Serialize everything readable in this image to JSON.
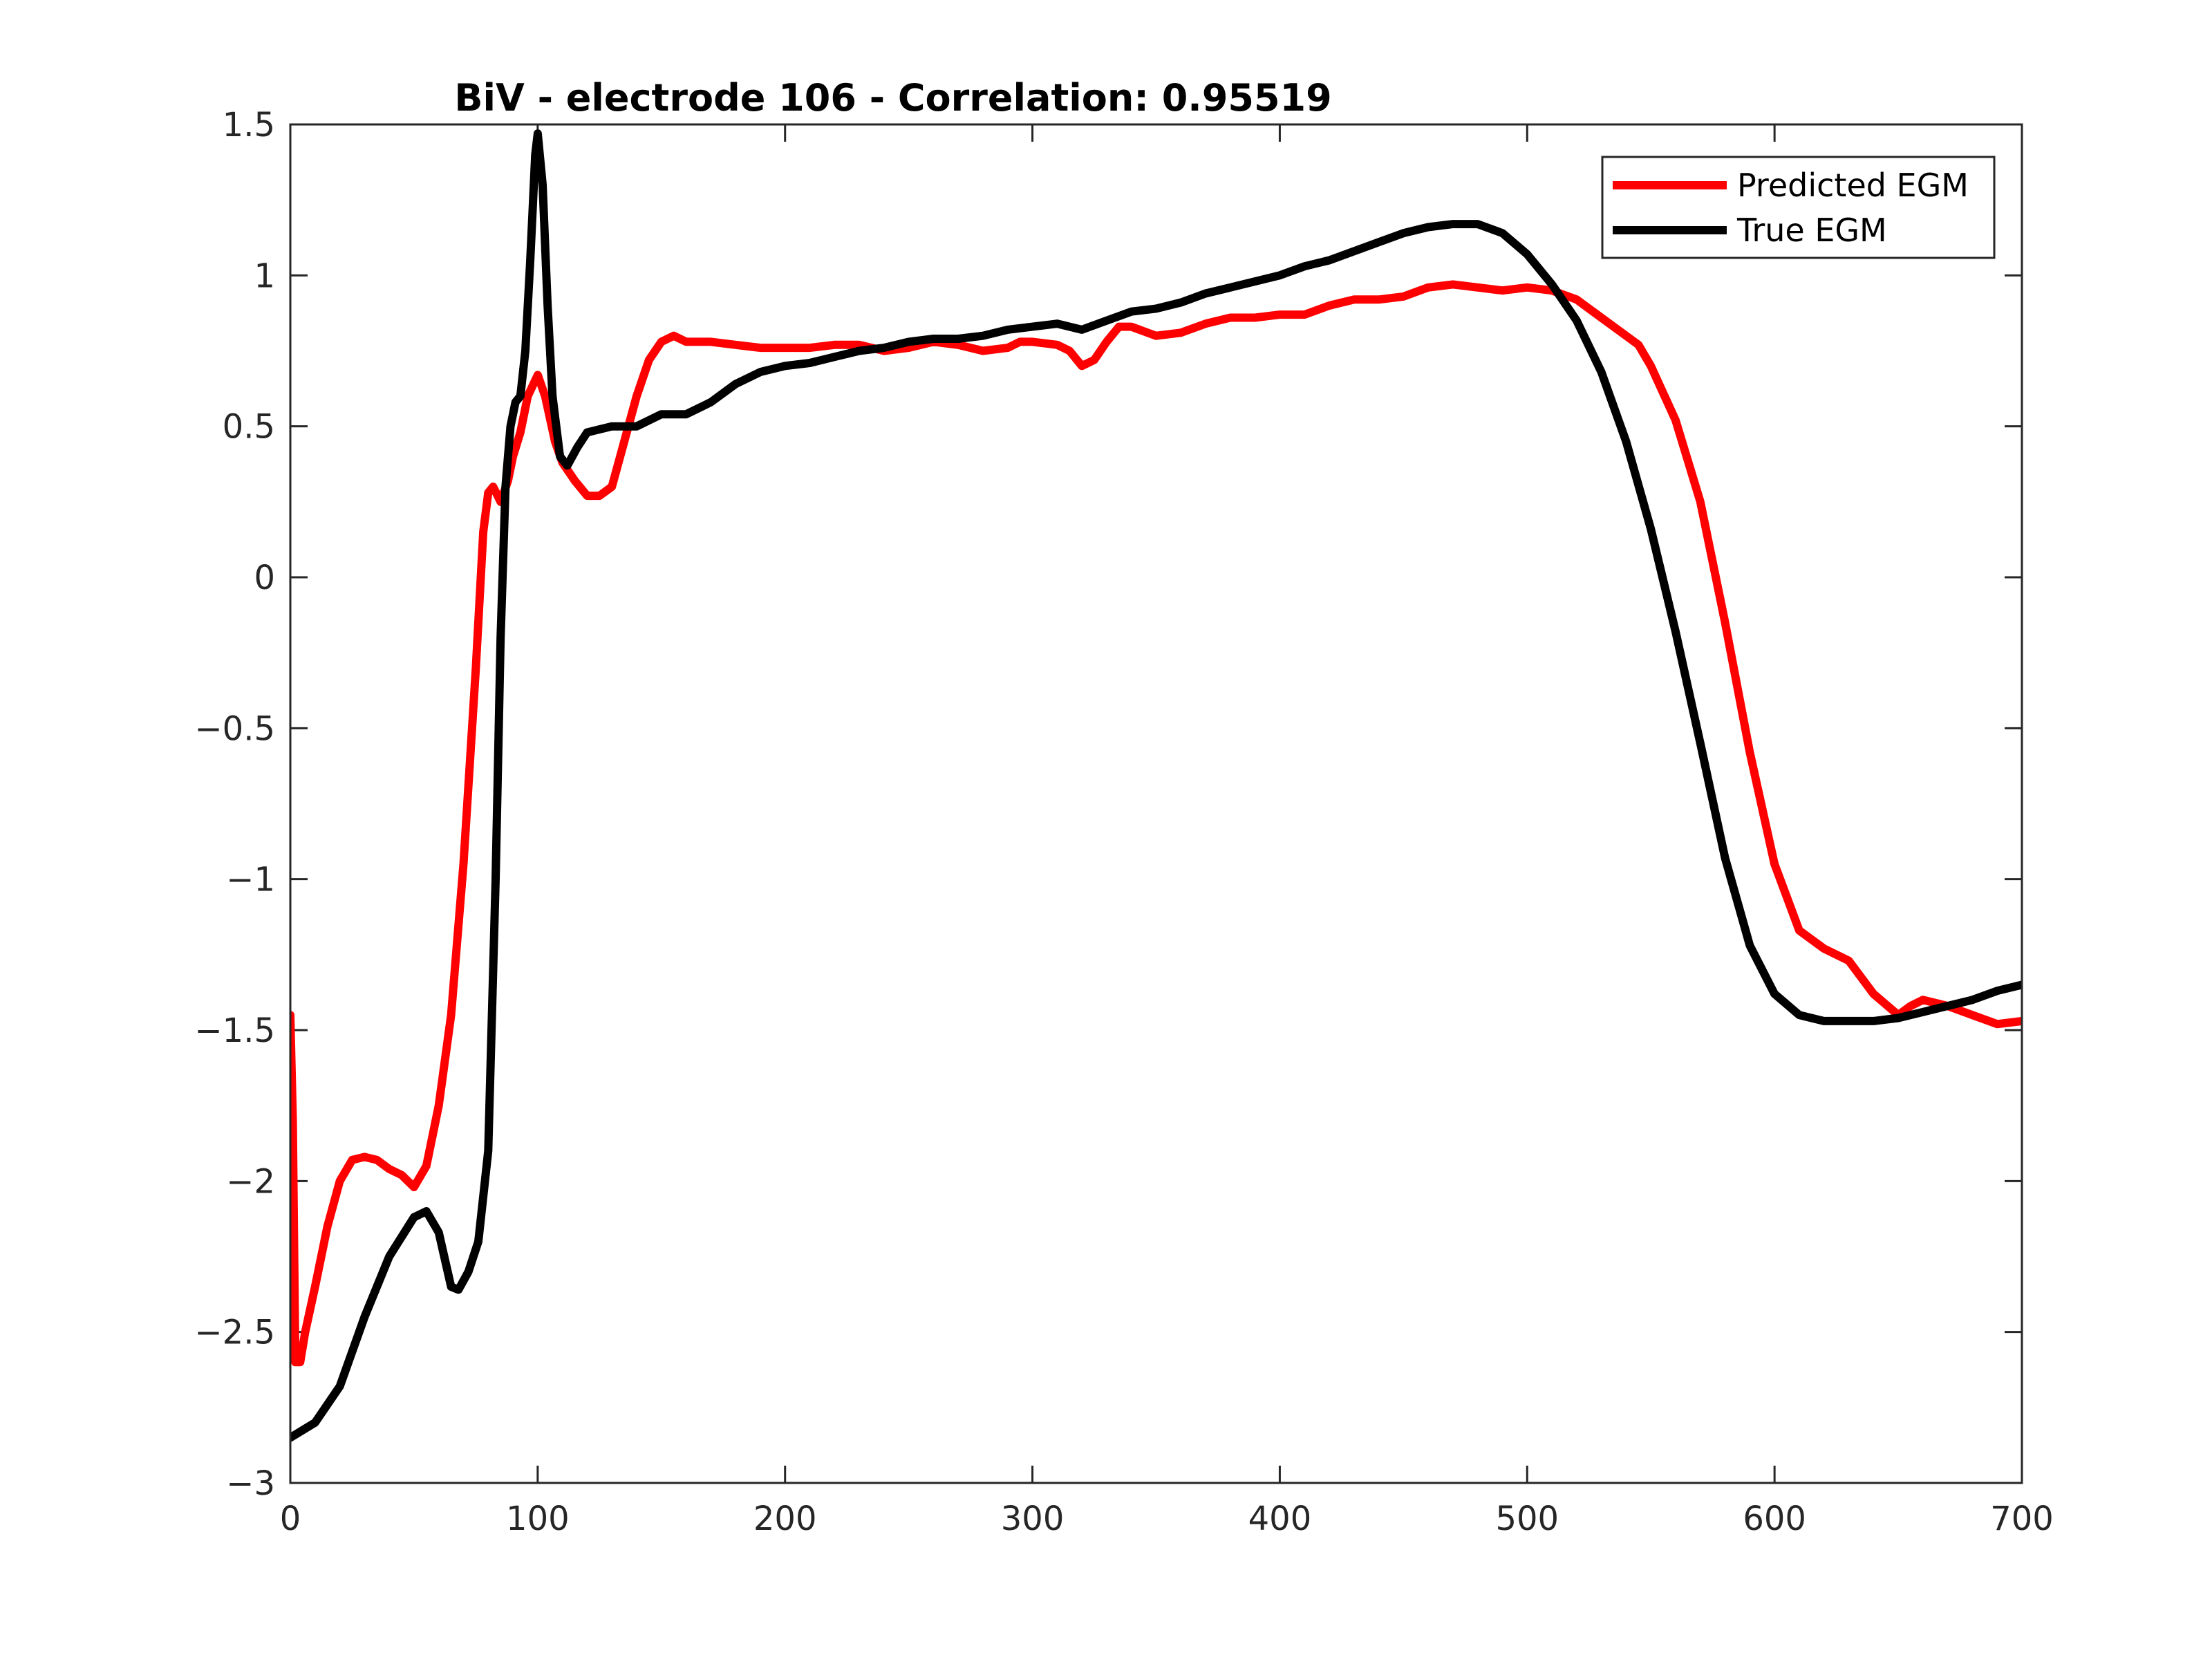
{
  "chart_data": {
    "type": "line",
    "title": "BiV - electrode 106 - Correlation: 0.95519",
    "xlabel": "",
    "ylabel": "",
    "xlim": [
      0,
      700
    ],
    "ylim": [
      -3,
      1.5
    ],
    "xticks": [
      0,
      100,
      200,
      300,
      400,
      500,
      600,
      700
    ],
    "xtick_labels": [
      "0",
      "100",
      "200",
      "300",
      "400",
      "500",
      "600",
      "700"
    ],
    "yticks": [
      1.5,
      1,
      0.5,
      0,
      -0.5,
      -1,
      -1.5,
      -2,
      -2.5,
      -3
    ],
    "ytick_labels": [
      "1.5",
      "1",
      "0.5",
      "0",
      "−0.5",
      "−1",
      "−1.5",
      "−2",
      "−2.5",
      "−3"
    ],
    "grid": false,
    "legend_position": "top-right",
    "series": [
      {
        "name": "Predicted EGM",
        "color": "#ff0000",
        "points": [
          [
            0,
            -1.45
          ],
          [
            1,
            -1.8
          ],
          [
            2,
            -2.6
          ],
          [
            4,
            -2.6
          ],
          [
            6,
            -2.5
          ],
          [
            10,
            -2.35
          ],
          [
            15,
            -2.15
          ],
          [
            20,
            -2.0
          ],
          [
            25,
            -1.93
          ],
          [
            30,
            -1.92
          ],
          [
            35,
            -1.93
          ],
          [
            40,
            -1.96
          ],
          [
            45,
            -1.98
          ],
          [
            50,
            -2.02
          ],
          [
            55,
            -1.95
          ],
          [
            60,
            -1.75
          ],
          [
            65,
            -1.45
          ],
          [
            70,
            -0.95
          ],
          [
            75,
            -0.3
          ],
          [
            78,
            0.15
          ],
          [
            80,
            0.28
          ],
          [
            82,
            0.3
          ],
          [
            85,
            0.25
          ],
          [
            88,
            0.32
          ],
          [
            90,
            0.4
          ],
          [
            93,
            0.48
          ],
          [
            96,
            0.6
          ],
          [
            100,
            0.67
          ],
          [
            103,
            0.6
          ],
          [
            107,
            0.45
          ],
          [
            110,
            0.38
          ],
          [
            115,
            0.32
          ],
          [
            120,
            0.27
          ],
          [
            125,
            0.27
          ],
          [
            130,
            0.3
          ],
          [
            135,
            0.45
          ],
          [
            140,
            0.6
          ],
          [
            145,
            0.72
          ],
          [
            150,
            0.78
          ],
          [
            155,
            0.8
          ],
          [
            160,
            0.78
          ],
          [
            170,
            0.78
          ],
          [
            180,
            0.77
          ],
          [
            190,
            0.76
          ],
          [
            200,
            0.76
          ],
          [
            210,
            0.76
          ],
          [
            220,
            0.77
          ],
          [
            230,
            0.77
          ],
          [
            240,
            0.75
          ],
          [
            250,
            0.76
          ],
          [
            260,
            0.78
          ],
          [
            270,
            0.77
          ],
          [
            280,
            0.75
          ],
          [
            290,
            0.76
          ],
          [
            295,
            0.78
          ],
          [
            300,
            0.78
          ],
          [
            310,
            0.77
          ],
          [
            315,
            0.75
          ],
          [
            320,
            0.7
          ],
          [
            325,
            0.72
          ],
          [
            330,
            0.78
          ],
          [
            335,
            0.83
          ],
          [
            340,
            0.83
          ],
          [
            350,
            0.8
          ],
          [
            360,
            0.81
          ],
          [
            370,
            0.84
          ],
          [
            380,
            0.86
          ],
          [
            390,
            0.86
          ],
          [
            400,
            0.87
          ],
          [
            410,
            0.87
          ],
          [
            420,
            0.9
          ],
          [
            430,
            0.92
          ],
          [
            440,
            0.92
          ],
          [
            450,
            0.93
          ],
          [
            460,
            0.96
          ],
          [
            470,
            0.97
          ],
          [
            480,
            0.96
          ],
          [
            490,
            0.95
          ],
          [
            500,
            0.96
          ],
          [
            510,
            0.95
          ],
          [
            520,
            0.92
          ],
          [
            530,
            0.86
          ],
          [
            540,
            0.8
          ],
          [
            545,
            0.77
          ],
          [
            550,
            0.7
          ],
          [
            560,
            0.52
          ],
          [
            570,
            0.25
          ],
          [
            580,
            -0.15
          ],
          [
            590,
            -0.58
          ],
          [
            600,
            -0.95
          ],
          [
            610,
            -1.17
          ],
          [
            620,
            -1.23
          ],
          [
            630,
            -1.27
          ],
          [
            640,
            -1.38
          ],
          [
            650,
            -1.45
          ],
          [
            655,
            -1.42
          ],
          [
            660,
            -1.4
          ],
          [
            670,
            -1.42
          ],
          [
            680,
            -1.45
          ],
          [
            690,
            -1.48
          ],
          [
            700,
            -1.47
          ]
        ]
      },
      {
        "name": "True EGM",
        "color": "#000000",
        "points": [
          [
            0,
            -2.85
          ],
          [
            10,
            -2.8
          ],
          [
            20,
            -2.68
          ],
          [
            30,
            -2.45
          ],
          [
            40,
            -2.25
          ],
          [
            50,
            -2.12
          ],
          [
            55,
            -2.1
          ],
          [
            60,
            -2.17
          ],
          [
            65,
            -2.35
          ],
          [
            68,
            -2.36
          ],
          [
            72,
            -2.3
          ],
          [
            76,
            -2.2
          ],
          [
            80,
            -1.9
          ],
          [
            83,
            -1.0
          ],
          [
            85,
            -0.2
          ],
          [
            87,
            0.3
          ],
          [
            89,
            0.5
          ],
          [
            91,
            0.58
          ],
          [
            93,
            0.6
          ],
          [
            95,
            0.75
          ],
          [
            97,
            1.05
          ],
          [
            99,
            1.4
          ],
          [
            100,
            1.47
          ],
          [
            102,
            1.3
          ],
          [
            104,
            0.9
          ],
          [
            106,
            0.6
          ],
          [
            109,
            0.4
          ],
          [
            112,
            0.37
          ],
          [
            116,
            0.43
          ],
          [
            120,
            0.48
          ],
          [
            130,
            0.5
          ],
          [
            140,
            0.5
          ],
          [
            150,
            0.54
          ],
          [
            160,
            0.54
          ],
          [
            170,
            0.58
          ],
          [
            180,
            0.64
          ],
          [
            190,
            0.68
          ],
          [
            200,
            0.7
          ],
          [
            210,
            0.71
          ],
          [
            220,
            0.73
          ],
          [
            230,
            0.75
          ],
          [
            240,
            0.76
          ],
          [
            250,
            0.78
          ],
          [
            260,
            0.79
          ],
          [
            270,
            0.79
          ],
          [
            280,
            0.8
          ],
          [
            290,
            0.82
          ],
          [
            300,
            0.83
          ],
          [
            310,
            0.84
          ],
          [
            320,
            0.82
          ],
          [
            330,
            0.85
          ],
          [
            340,
            0.88
          ],
          [
            350,
            0.89
          ],
          [
            360,
            0.91
          ],
          [
            370,
            0.94
          ],
          [
            380,
            0.96
          ],
          [
            390,
            0.98
          ],
          [
            400,
            1.0
          ],
          [
            410,
            1.03
          ],
          [
            420,
            1.05
          ],
          [
            430,
            1.08
          ],
          [
            440,
            1.11
          ],
          [
            450,
            1.14
          ],
          [
            460,
            1.16
          ],
          [
            470,
            1.17
          ],
          [
            480,
            1.17
          ],
          [
            490,
            1.14
          ],
          [
            500,
            1.07
          ],
          [
            510,
            0.97
          ],
          [
            520,
            0.85
          ],
          [
            530,
            0.68
          ],
          [
            540,
            0.45
          ],
          [
            550,
            0.16
          ],
          [
            560,
            -0.18
          ],
          [
            570,
            -0.55
          ],
          [
            580,
            -0.93
          ],
          [
            590,
            -1.22
          ],
          [
            600,
            -1.38
          ],
          [
            610,
            -1.45
          ],
          [
            620,
            -1.47
          ],
          [
            630,
            -1.47
          ],
          [
            640,
            -1.47
          ],
          [
            650,
            -1.46
          ],
          [
            660,
            -1.44
          ],
          [
            670,
            -1.42
          ],
          [
            680,
            -1.4
          ],
          [
            690,
            -1.37
          ],
          [
            700,
            -1.35
          ]
        ]
      }
    ]
  }
}
